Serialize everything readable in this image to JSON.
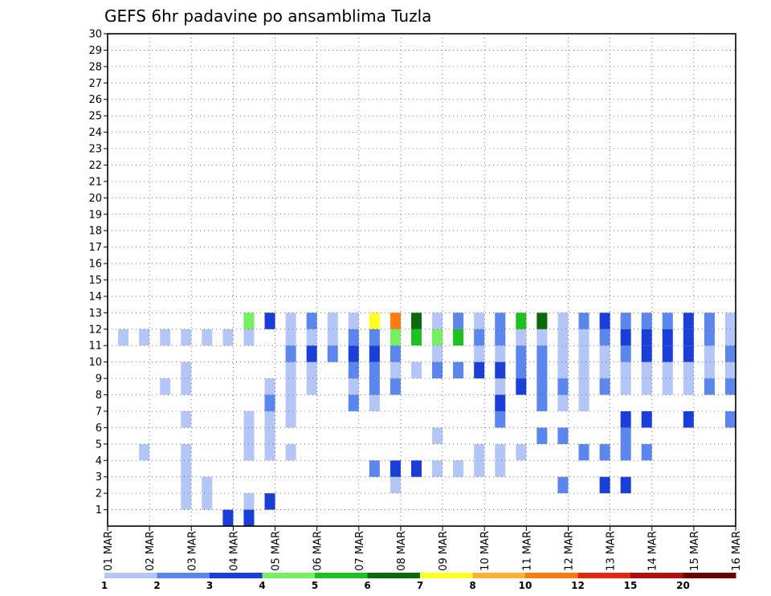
{
  "chart_data": {
    "type": "heatmap",
    "title": "GEFS 6hr padavine po ansamblima Tuzla",
    "xlabel": "",
    "ylabel": "",
    "x_tick_labels": [
      "01 MAR",
      "02 MAR",
      "03 MAR",
      "04 MAR",
      "05 MAR",
      "06 MAR",
      "07 MAR",
      "08 MAR",
      "09 MAR",
      "10 MAR",
      "11 MAR",
      "12 MAR",
      "13 MAR",
      "14 MAR",
      "15 MAR",
      "16 MAR"
    ],
    "y_tick_labels": [
      "1",
      "2",
      "3",
      "4",
      "5",
      "6",
      "7",
      "8",
      "9",
      "10",
      "11",
      "12",
      "13",
      "14",
      "15",
      "16",
      "17",
      "18",
      "19",
      "20",
      "21",
      "22",
      "23",
      "24",
      "25",
      "26",
      "27",
      "28",
      "29",
      "30"
    ],
    "xlim_days": [
      0,
      15
    ],
    "ylim_members": [
      0,
      30
    ],
    "time_step_hours": 6,
    "grid": "dotted",
    "colorbar": {
      "position": "bottom",
      "tick_labels": [
        "1",
        "2",
        "3",
        "4",
        "5",
        "6",
        "7",
        "8",
        "10",
        "12",
        "15",
        "20"
      ],
      "colors": [
        "#b3c6f7",
        "#5b86ee",
        "#1a3fd8",
        "#74f060",
        "#1ec21e",
        "#0b6b0b",
        "#ffff20",
        "#ffb030",
        "#ff7a10",
        "#e02a10",
        "#b01010",
        "#6a0000"
      ]
    },
    "cells": [
      [
        5,
        0,
        3
      ],
      [
        6,
        0,
        3
      ],
      [
        3,
        1,
        1
      ],
      [
        4,
        1,
        1
      ],
      [
        6,
        1,
        1
      ],
      [
        7,
        1,
        3
      ],
      [
        3,
        2,
        1
      ],
      [
        4,
        2,
        1
      ],
      [
        13,
        2,
        1
      ],
      [
        21,
        2,
        2
      ],
      [
        23,
        2,
        3
      ],
      [
        24,
        2,
        3
      ],
      [
        3,
        3,
        1
      ],
      [
        12,
        3,
        2
      ],
      [
        13,
        3,
        3
      ],
      [
        14,
        3,
        3
      ],
      [
        15,
        3,
        1
      ],
      [
        16,
        3,
        1
      ],
      [
        17,
        3,
        1
      ],
      [
        18,
        3,
        1
      ],
      [
        1,
        4,
        1
      ],
      [
        3,
        4,
        1
      ],
      [
        6,
        4,
        1
      ],
      [
        7,
        4,
        1
      ],
      [
        8,
        4,
        1
      ],
      [
        17,
        4,
        1
      ],
      [
        18,
        4,
        1
      ],
      [
        19,
        4,
        1
      ],
      [
        22,
        4,
        2
      ],
      [
        23,
        4,
        2
      ],
      [
        24,
        4,
        2
      ],
      [
        25,
        4,
        2
      ],
      [
        6,
        5,
        1
      ],
      [
        7,
        5,
        1
      ],
      [
        15,
        5,
        1
      ],
      [
        20,
        5,
        2
      ],
      [
        21,
        5,
        2
      ],
      [
        24,
        5,
        2
      ],
      [
        3,
        6,
        1
      ],
      [
        6,
        6,
        1
      ],
      [
        7,
        6,
        1
      ],
      [
        8,
        6,
        1
      ],
      [
        18,
        6,
        2
      ],
      [
        24,
        6,
        3
      ],
      [
        25,
        6,
        3
      ],
      [
        27,
        6,
        3
      ],
      [
        29,
        6,
        2
      ],
      [
        7,
        7,
        2
      ],
      [
        8,
        7,
        1
      ],
      [
        11,
        7,
        2
      ],
      [
        12,
        7,
        1
      ],
      [
        18,
        7,
        3
      ],
      [
        20,
        7,
        2
      ],
      [
        21,
        7,
        1
      ],
      [
        22,
        7,
        1
      ],
      [
        2,
        8,
        1
      ],
      [
        3,
        8,
        1
      ],
      [
        7,
        8,
        1
      ],
      [
        8,
        8,
        1
      ],
      [
        9,
        8,
        1
      ],
      [
        11,
        8,
        1
      ],
      [
        12,
        8,
        2
      ],
      [
        13,
        8,
        2
      ],
      [
        18,
        8,
        1
      ],
      [
        19,
        8,
        3
      ],
      [
        20,
        8,
        2
      ],
      [
        21,
        8,
        2
      ],
      [
        22,
        8,
        1
      ],
      [
        23,
        8,
        2
      ],
      [
        24,
        8,
        1
      ],
      [
        25,
        8,
        1
      ],
      [
        26,
        8,
        1
      ],
      [
        27,
        8,
        1
      ],
      [
        28,
        8,
        2
      ],
      [
        29,
        8,
        2
      ],
      [
        3,
        9,
        1
      ],
      [
        8,
        9,
        1
      ],
      [
        9,
        9,
        1
      ],
      [
        11,
        9,
        2
      ],
      [
        12,
        9,
        2
      ],
      [
        13,
        9,
        1
      ],
      [
        14,
        9,
        1
      ],
      [
        15,
        9,
        2
      ],
      [
        16,
        9,
        2
      ],
      [
        17,
        9,
        3
      ],
      [
        18,
        9,
        3
      ],
      [
        19,
        9,
        2
      ],
      [
        20,
        9,
        2
      ],
      [
        21,
        9,
        1
      ],
      [
        22,
        9,
        1
      ],
      [
        23,
        9,
        1
      ],
      [
        24,
        9,
        1
      ],
      [
        25,
        9,
        1
      ],
      [
        26,
        9,
        1
      ],
      [
        27,
        9,
        1
      ],
      [
        28,
        9,
        1
      ],
      [
        29,
        9,
        1
      ],
      [
        8,
        10,
        2
      ],
      [
        9,
        10,
        3
      ],
      [
        10,
        10,
        2
      ],
      [
        11,
        10,
        3
      ],
      [
        12,
        10,
        3
      ],
      [
        13,
        10,
        2
      ],
      [
        15,
        10,
        1
      ],
      [
        17,
        10,
        1
      ],
      [
        18,
        10,
        1
      ],
      [
        19,
        10,
        2
      ],
      [
        20,
        10,
        2
      ],
      [
        21,
        10,
        1
      ],
      [
        22,
        10,
        1
      ],
      [
        23,
        10,
        1
      ],
      [
        24,
        10,
        2
      ],
      [
        25,
        10,
        3
      ],
      [
        26,
        10,
        3
      ],
      [
        27,
        10,
        3
      ],
      [
        28,
        10,
        1
      ],
      [
        29,
        10,
        2
      ],
      [
        0,
        11,
        1
      ],
      [
        1,
        11,
        1
      ],
      [
        2,
        11,
        1
      ],
      [
        3,
        11,
        1
      ],
      [
        4,
        11,
        1
      ],
      [
        5,
        11,
        1
      ],
      [
        6,
        11,
        1
      ],
      [
        8,
        11,
        1
      ],
      [
        9,
        11,
        1
      ],
      [
        10,
        11,
        1
      ],
      [
        11,
        11,
        2
      ],
      [
        12,
        11,
        2
      ],
      [
        13,
        11,
        4
      ],
      [
        14,
        11,
        5
      ],
      [
        15,
        11,
        4
      ],
      [
        16,
        11,
        5
      ],
      [
        17,
        11,
        2
      ],
      [
        18,
        11,
        2
      ],
      [
        19,
        11,
        1
      ],
      [
        20,
        11,
        1
      ],
      [
        21,
        11,
        1
      ],
      [
        22,
        11,
        1
      ],
      [
        23,
        11,
        2
      ],
      [
        24,
        11,
        3
      ],
      [
        25,
        11,
        3
      ],
      [
        26,
        11,
        3
      ],
      [
        27,
        11,
        3
      ],
      [
        28,
        11,
        2
      ],
      [
        29,
        11,
        1
      ],
      [
        6,
        12,
        4
      ],
      [
        7,
        12,
        3
      ],
      [
        8,
        12,
        1
      ],
      [
        9,
        12,
        2
      ],
      [
        10,
        12,
        1
      ],
      [
        11,
        12,
        1
      ],
      [
        12,
        12,
        7
      ],
      [
        13,
        12,
        9
      ],
      [
        14,
        12,
        6
      ],
      [
        15,
        12,
        1
      ],
      [
        16,
        12,
        2
      ],
      [
        17,
        12,
        1
      ],
      [
        18,
        12,
        2
      ],
      [
        19,
        12,
        5
      ],
      [
        20,
        12,
        6
      ],
      [
        21,
        12,
        1
      ],
      [
        22,
        12,
        2
      ],
      [
        23,
        12,
        3
      ],
      [
        24,
        12,
        2
      ],
      [
        25,
        12,
        2
      ],
      [
        26,
        12,
        2
      ],
      [
        27,
        12,
        3
      ],
      [
        28,
        12,
        2
      ],
      [
        29,
        12,
        1
      ]
    ]
  }
}
